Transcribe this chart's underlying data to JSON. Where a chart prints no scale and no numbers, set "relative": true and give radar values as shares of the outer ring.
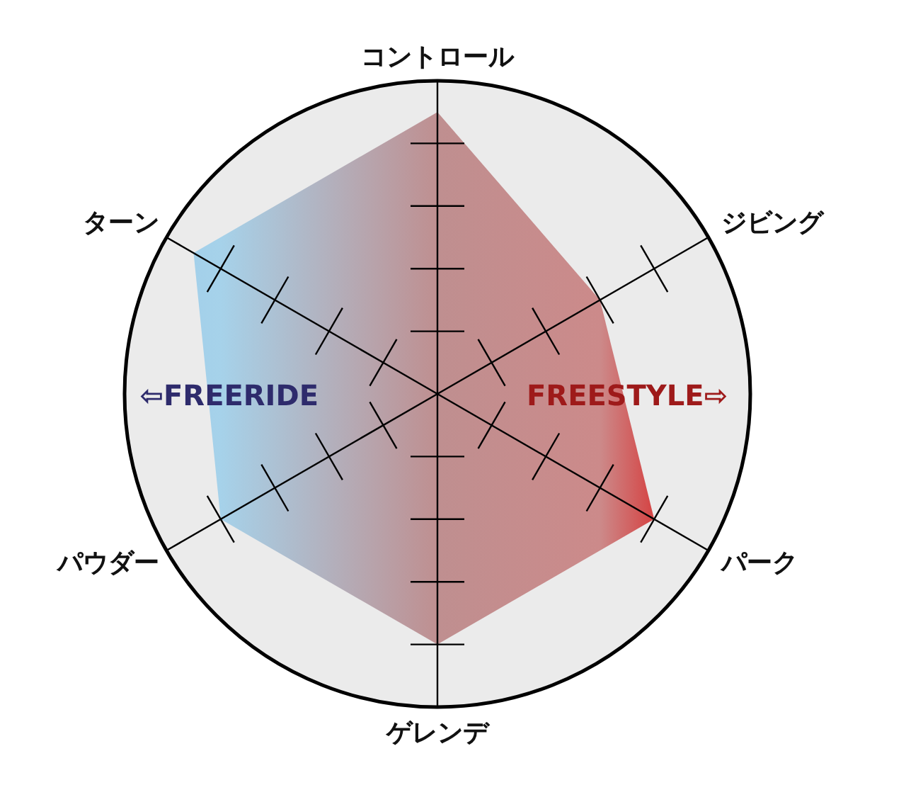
{
  "chart_data": {
    "type": "radar",
    "categories": [
      "コントロール",
      "ジビング",
      "パーク",
      "ゲレンデ",
      "パウダー",
      "ターン"
    ],
    "values": [
      0.9,
      0.6,
      0.8,
      0.8,
      0.8,
      0.9
    ],
    "colors": [
      "#bf8f90",
      "#cc8a8a",
      "#d54343",
      "#bf8f90",
      "#a6d2ea",
      "#a3d0ea"
    ],
    "relative": true,
    "grid": true,
    "annotations": [
      "⇦FREERIDE",
      "FREESTYLE⇨"
    ]
  }
}
